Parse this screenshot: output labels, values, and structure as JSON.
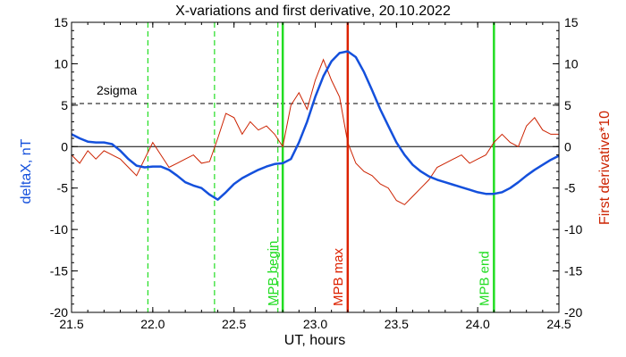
{
  "chart_data": {
    "type": "line",
    "title": "X-variations and first derivative, 20.10.2022",
    "xlabel": "UT, hours",
    "ylabel_left": "deltaX, nT",
    "ylabel_right": "First derivative*10",
    "xlim": [
      21.5,
      24.5
    ],
    "ylim_left": [
      -20,
      15
    ],
    "ylim_right": [
      -20,
      15
    ],
    "x_ticks": [
      "21.5",
      "22.0",
      "22.5",
      "23.0",
      "23.5",
      "24.0",
      "24.5"
    ],
    "y_ticks": [
      "-20",
      "-15",
      "-10",
      "-5",
      "0",
      "5",
      "10",
      "15"
    ],
    "grid": false,
    "colors": {
      "deltaX": "#1450dc",
      "derivative": "#cc2200",
      "mpb": "#22dd22",
      "mpb_max": "#dd2200",
      "sigma": "#000000"
    },
    "threshold": {
      "label": "2sigma",
      "value": 5.2
    },
    "zero_line": 0,
    "series": [
      {
        "name": "deltaX, nT",
        "axis": "left",
        "x": [
          21.5,
          21.55,
          21.6,
          21.65,
          21.7,
          21.75,
          21.8,
          21.85,
          21.9,
          21.95,
          22.0,
          22.05,
          22.1,
          22.15,
          22.2,
          22.25,
          22.3,
          22.35,
          22.4,
          22.45,
          22.5,
          22.55,
          22.6,
          22.65,
          22.7,
          22.75,
          22.8,
          22.85,
          22.9,
          22.95,
          23.0,
          23.05,
          23.1,
          23.15,
          23.2,
          23.25,
          23.3,
          23.35,
          23.4,
          23.45,
          23.5,
          23.55,
          23.6,
          23.65,
          23.7,
          23.75,
          23.8,
          23.85,
          23.9,
          23.95,
          24.0,
          24.05,
          24.1,
          24.15,
          24.2,
          24.25,
          24.3,
          24.35,
          24.4,
          24.45,
          24.5
        ],
        "y": [
          1.5,
          1.0,
          0.6,
          0.5,
          0.5,
          0.3,
          -0.5,
          -1.5,
          -2.3,
          -2.5,
          -2.4,
          -2.4,
          -2.8,
          -3.5,
          -4.3,
          -4.7,
          -5.0,
          -5.8,
          -6.4,
          -5.5,
          -4.5,
          -3.8,
          -3.3,
          -2.8,
          -2.4,
          -2.1,
          -2.0,
          -1.5,
          0.5,
          3.0,
          6.0,
          8.5,
          10.3,
          11.3,
          11.5,
          10.8,
          9.0,
          6.8,
          4.5,
          2.5,
          0.5,
          -1.0,
          -2.2,
          -3.0,
          -3.6,
          -4.0,
          -4.3,
          -4.6,
          -4.9,
          -5.2,
          -5.5,
          -5.7,
          -5.7,
          -5.5,
          -5.0,
          -4.3,
          -3.5,
          -2.8,
          -2.2,
          -1.6,
          -1.1
        ]
      },
      {
        "name": "First derivative*10",
        "axis": "right",
        "x": [
          21.5,
          21.55,
          21.6,
          21.65,
          21.7,
          21.75,
          21.8,
          21.85,
          21.9,
          21.95,
          22.0,
          22.05,
          22.1,
          22.15,
          22.2,
          22.25,
          22.3,
          22.35,
          22.4,
          22.45,
          22.5,
          22.55,
          22.6,
          22.65,
          22.7,
          22.75,
          22.8,
          22.85,
          22.9,
          22.95,
          23.0,
          23.05,
          23.1,
          23.15,
          23.2,
          23.25,
          23.3,
          23.35,
          23.4,
          23.45,
          23.5,
          23.55,
          23.6,
          23.65,
          23.7,
          23.75,
          23.8,
          23.85,
          23.9,
          23.95,
          24.0,
          24.05,
          24.1,
          24.15,
          24.2,
          24.25,
          24.3,
          24.35,
          24.4,
          24.45,
          24.5
        ],
        "y": [
          -1.0,
          -2.0,
          -0.5,
          -1.5,
          -0.5,
          -1.0,
          -1.5,
          -2.5,
          -3.5,
          -1.5,
          0.5,
          -1.0,
          -2.5,
          -2.0,
          -1.5,
          -1.0,
          -2.0,
          -1.8,
          1.0,
          4.0,
          3.5,
          1.5,
          3.0,
          2.0,
          2.5,
          1.5,
          0.0,
          5.0,
          6.5,
          4.5,
          8.0,
          10.5,
          8.0,
          6.0,
          0.5,
          -2.0,
          -3.0,
          -3.5,
          -4.5,
          -5.0,
          -6.5,
          -7.0,
          -6.0,
          -5.0,
          -4.0,
          -2.5,
          -2.0,
          -1.5,
          -1.0,
          -2.0,
          -1.5,
          -1.0,
          0.5,
          1.5,
          0.5,
          0.0,
          2.5,
          3.5,
          2.0,
          1.5,
          1.5
        ]
      }
    ],
    "vertical_lines": [
      {
        "x": 21.97,
        "style": "dashed",
        "color": "#22dd22",
        "label": ""
      },
      {
        "x": 22.38,
        "style": "dashed",
        "color": "#22dd22",
        "label": ""
      },
      {
        "x": 22.77,
        "style": "dashed",
        "color": "#22dd22",
        "label": ""
      },
      {
        "x": 22.8,
        "style": "solid",
        "color": "#22dd22",
        "label": "MPB begin"
      },
      {
        "x": 23.2,
        "style": "solid",
        "color": "#dd2200",
        "label": "MPB max"
      },
      {
        "x": 24.1,
        "style": "solid",
        "color": "#22dd22",
        "label": "MPB end"
      }
    ]
  }
}
